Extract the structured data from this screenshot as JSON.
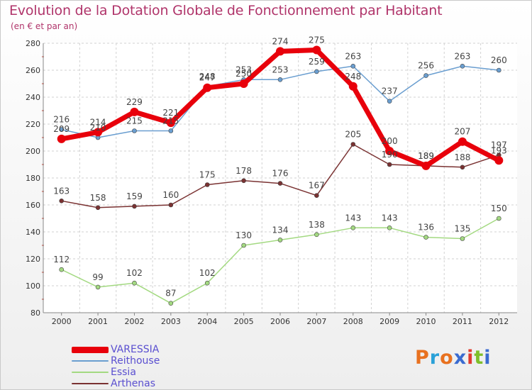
{
  "title": "Evolution de la Dotation Globale de Fonctionnement par Habitant",
  "subtitle": "(en € et par an)",
  "logo": {
    "text": "Proxiti",
    "colors": [
      "#e8711f",
      "#2aa1d8",
      "#e8711f",
      "#3a6bd0",
      "#e03a2f",
      "#7fbf2a",
      "#3a6bd0"
    ]
  },
  "chart_data": {
    "type": "line",
    "x": [
      "2000",
      "2001",
      "2002",
      "2003",
      "2004",
      "2005",
      "2006",
      "2007",
      "2008",
      "2009",
      "2010",
      "2011",
      "2012"
    ],
    "ylim": [
      80,
      280
    ],
    "yticks": [
      "80",
      "100",
      "120",
      "140",
      "160",
      "180",
      "200",
      "220",
      "240",
      "260",
      "280"
    ],
    "grid": true,
    "legend_position": "bottom-left",
    "series": [
      {
        "name": "VARESSIA",
        "color": "#e8000b",
        "values": [
          209,
          214,
          229,
          221,
          247,
          250,
          274,
          275,
          248,
          200,
          189,
          207,
          193
        ],
        "labels": [
          "209",
          "214",
          "229",
          "221",
          "247",
          "250",
          "274",
          "275",
          "248",
          "200",
          "189",
          "207",
          "193"
        ]
      },
      {
        "name": "Reithouse",
        "color": "#6a9ed0",
        "values": [
          216,
          210,
          215,
          215,
          248,
          253,
          253,
          259,
          263,
          237,
          256,
          263,
          260
        ],
        "labels": [
          "216",
          "210",
          "215",
          "215",
          "248",
          "253",
          "253",
          "259",
          "263",
          "237",
          "256",
          "263",
          "260"
        ]
      },
      {
        "name": "Essia",
        "color": "#a3d981",
        "values": [
          112,
          99,
          102,
          87,
          102,
          130,
          134,
          138,
          143,
          143,
          136,
          135,
          150
        ],
        "labels": [
          "112",
          "99",
          "102",
          "87",
          "102",
          "130",
          "134",
          "138",
          "143",
          "143",
          "136",
          "135",
          "150"
        ]
      },
      {
        "name": "Arthenas",
        "color": "#7a3232",
        "values": [
          163,
          158,
          159,
          160,
          175,
          178,
          176,
          167,
          205,
          190,
          189,
          188,
          197
        ],
        "labels": [
          "163",
          "158",
          "159",
          "160",
          "175",
          "178",
          "176",
          "167",
          "205",
          "190",
          "189",
          "188",
          "197"
        ]
      }
    ]
  }
}
